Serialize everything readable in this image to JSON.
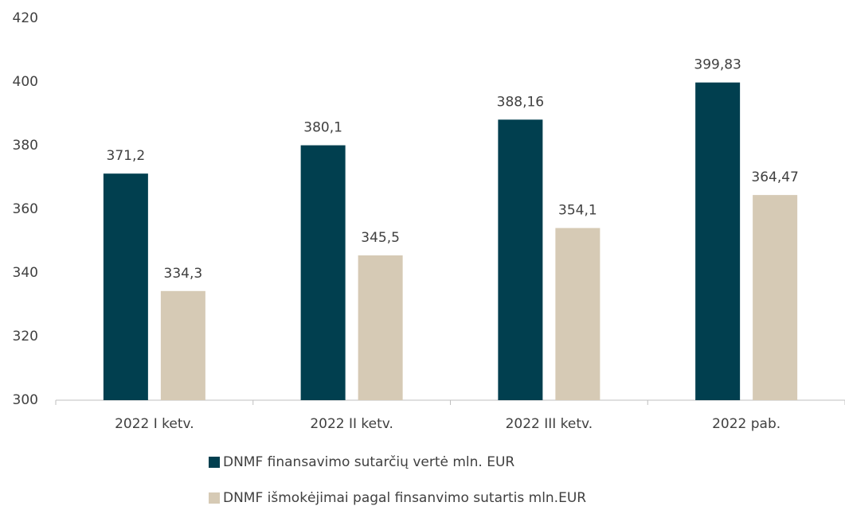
{
  "chart_data": {
    "type": "bar",
    "categories": [
      "2022 I ketv.",
      "2022 II ketv.",
      "2022 III ketv.",
      "2022 pab."
    ],
    "series": [
      {
        "name": "DNMF finansavimo sutarčių vertė mln. EUR",
        "color": "#013f4f",
        "values": [
          371.2,
          380.1,
          388.16,
          399.83
        ],
        "value_labels": [
          "371,2",
          "380,1",
          "388,16",
          "399,83"
        ]
      },
      {
        "name": "DNMF išmokėjimai pagal finsanvimo sutartis mln.EUR",
        "color": "#d6cab5",
        "values": [
          334.3,
          345.5,
          354.1,
          364.47
        ],
        "value_labels": [
          "334,3",
          "345,5",
          "354,1",
          "364,47"
        ]
      }
    ],
    "ylim": [
      300,
      420
    ],
    "yticks": [
      300,
      320,
      340,
      360,
      380,
      400,
      420
    ],
    "grid": false
  }
}
